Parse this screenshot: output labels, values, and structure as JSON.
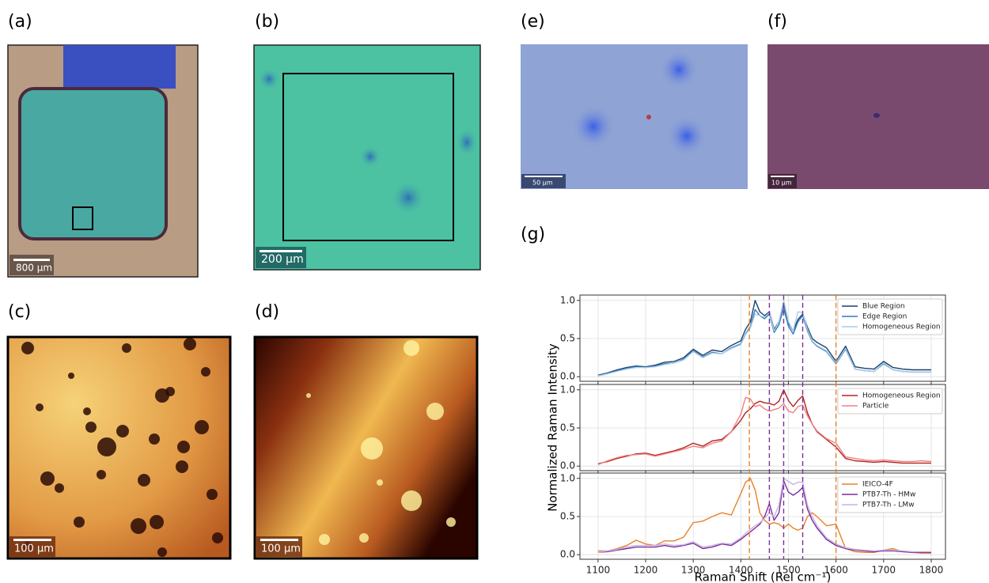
{
  "panel_labels": [
    "(a)",
    "(b)",
    "(c)",
    "(d)",
    "(e)",
    "(f)",
    "(g)"
  ],
  "scale_bars": [
    "800 µm",
    "200 µm",
    "100 µm",
    "100 µm",
    "50 µm",
    "10 µm"
  ],
  "reference_lines": [
    {
      "x": 1418,
      "color": "#e8812a"
    },
    {
      "x": 1460,
      "color": "#7b2d9e"
    },
    {
      "x": 1490,
      "color": "#7b2d9e"
    },
    {
      "x": 1530,
      "color": "#7b2d9e"
    },
    {
      "x": 1600,
      "color": "#e8812a"
    }
  ],
  "chart_data": [
    {
      "type": "line",
      "xlim": [
        1062,
        1830
      ],
      "ylim": [
        -0.06,
        1.07
      ],
      "xticks": [
        1100,
        1200,
        1300,
        1400,
        1500,
        1600,
        1700,
        1800
      ],
      "yticks": [
        {
          "value": 0,
          "label": "0.0"
        },
        {
          "value": 0.5,
          "label": "0.5"
        },
        {
          "value": 1,
          "label": "1.0"
        }
      ],
      "grid": true,
      "x": [
        1100,
        1120,
        1140,
        1160,
        1180,
        1200,
        1220,
        1240,
        1260,
        1280,
        1300,
        1320,
        1340,
        1360,
        1380,
        1400,
        1410,
        1420,
        1430,
        1440,
        1450,
        1460,
        1470,
        1480,
        1490,
        1500,
        1510,
        1520,
        1530,
        1540,
        1550,
        1560,
        1580,
        1600,
        1620,
        1640,
        1660,
        1680,
        1700,
        1720,
        1740,
        1760,
        1780,
        1800
      ],
      "series": [
        {
          "name": "Blue Region",
          "color": "#1d3f6e",
          "values": [
            0.02,
            0.05,
            0.09,
            0.12,
            0.14,
            0.13,
            0.15,
            0.19,
            0.2,
            0.25,
            0.36,
            0.28,
            0.35,
            0.33,
            0.41,
            0.47,
            0.62,
            0.72,
            1.0,
            0.85,
            0.8,
            0.85,
            0.62,
            0.72,
            0.97,
            0.7,
            0.6,
            0.75,
            0.82,
            0.65,
            0.5,
            0.45,
            0.38,
            0.2,
            0.4,
            0.13,
            0.11,
            0.1,
            0.2,
            0.12,
            0.1,
            0.09,
            0.09,
            0.09
          ]
        },
        {
          "name": "Edge Region",
          "color": "#2e7bbf",
          "values": [
            0.01,
            0.04,
            0.08,
            0.11,
            0.13,
            0.12,
            0.14,
            0.17,
            0.18,
            0.23,
            0.34,
            0.26,
            0.32,
            0.3,
            0.38,
            0.43,
            0.56,
            0.66,
            0.88,
            0.8,
            0.76,
            0.82,
            0.58,
            0.68,
            0.9,
            0.66,
            0.56,
            0.72,
            0.8,
            0.6,
            0.46,
            0.4,
            0.33,
            0.17,
            0.36,
            0.1,
            0.08,
            0.07,
            0.17,
            0.09,
            0.07,
            0.06,
            0.06,
            0.06
          ]
        },
        {
          "name": "Homogeneous Region",
          "color": "#a9cce3",
          "values": [
            0.01,
            0.04,
            0.07,
            0.1,
            0.12,
            0.12,
            0.13,
            0.16,
            0.18,
            0.22,
            0.33,
            0.25,
            0.31,
            0.3,
            0.37,
            0.42,
            0.55,
            0.64,
            0.82,
            0.8,
            0.78,
            0.84,
            0.6,
            0.72,
            1.0,
            0.72,
            0.6,
            0.85,
            0.84,
            0.62,
            0.47,
            0.41,
            0.34,
            0.18,
            0.37,
            0.1,
            0.08,
            0.07,
            0.18,
            0.09,
            0.07,
            0.06,
            0.06,
            0.06
          ]
        }
      ]
    },
    {
      "type": "line",
      "ylabel": "Normalized Raman Intensity",
      "xlim": [
        1062,
        1830
      ],
      "ylim": [
        -0.06,
        1.07
      ],
      "xticks": [
        1100,
        1200,
        1300,
        1400,
        1500,
        1600,
        1700,
        1800
      ],
      "yticks": [
        {
          "value": 0,
          "label": "0.0"
        },
        {
          "value": 0.5,
          "label": "0.5"
        },
        {
          "value": 1,
          "label": "1.0"
        }
      ],
      "grid": true,
      "x": [
        1100,
        1120,
        1140,
        1160,
        1180,
        1200,
        1220,
        1240,
        1260,
        1280,
        1300,
        1320,
        1340,
        1360,
        1380,
        1400,
        1410,
        1420,
        1430,
        1440,
        1450,
        1460,
        1470,
        1480,
        1490,
        1500,
        1510,
        1520,
        1530,
        1540,
        1550,
        1560,
        1580,
        1600,
        1620,
        1640,
        1660,
        1680,
        1700,
        1720,
        1740,
        1760,
        1780,
        1800
      ],
      "series": [
        {
          "name": "Homogeneous Region",
          "color": "#b22222",
          "values": [
            0.03,
            0.06,
            0.1,
            0.13,
            0.16,
            0.17,
            0.14,
            0.17,
            0.2,
            0.24,
            0.3,
            0.26,
            0.33,
            0.35,
            0.45,
            0.6,
            0.7,
            0.75,
            0.82,
            0.85,
            0.83,
            0.82,
            0.8,
            0.85,
            1.0,
            0.86,
            0.78,
            0.86,
            0.92,
            0.7,
            0.55,
            0.45,
            0.35,
            0.25,
            0.1,
            0.07,
            0.06,
            0.05,
            0.06,
            0.05,
            0.04,
            0.04,
            0.04,
            0.04
          ]
        },
        {
          "name": "Particle",
          "color": "#f08080",
          "values": [
            0.02,
            0.07,
            0.11,
            0.14,
            0.15,
            0.16,
            0.13,
            0.16,
            0.19,
            0.22,
            0.26,
            0.24,
            0.3,
            0.33,
            0.45,
            0.68,
            0.9,
            0.88,
            0.78,
            0.8,
            0.75,
            0.72,
            0.74,
            0.76,
            0.82,
            0.72,
            0.7,
            0.78,
            0.8,
            0.66,
            0.55,
            0.46,
            0.36,
            0.3,
            0.12,
            0.1,
            0.08,
            0.07,
            0.08,
            0.07,
            0.06,
            0.06,
            0.07,
            0.06
          ]
        }
      ]
    },
    {
      "type": "line",
      "xlabel": "Raman Shift (Rel cm⁻¹)",
      "xlim": [
        1062,
        1830
      ],
      "ylim": [
        -0.06,
        1.07
      ],
      "xticks": [
        1100,
        1200,
        1300,
        1400,
        1500,
        1600,
        1700,
        1800
      ],
      "yticks": [
        {
          "value": 0,
          "label": "0.0"
        },
        {
          "value": 0.5,
          "label": "0.5"
        },
        {
          "value": 1,
          "label": "1.0"
        }
      ],
      "grid": true,
      "x": [
        1100,
        1120,
        1140,
        1160,
        1180,
        1200,
        1220,
        1240,
        1260,
        1280,
        1300,
        1320,
        1340,
        1360,
        1380,
        1400,
        1410,
        1420,
        1430,
        1440,
        1450,
        1460,
        1470,
        1480,
        1490,
        1500,
        1510,
        1520,
        1530,
        1540,
        1550,
        1560,
        1580,
        1600,
        1620,
        1640,
        1660,
        1680,
        1700,
        1720,
        1740,
        1760,
        1780,
        1800
      ],
      "series": [
        {
          "name": "IEICO-4F",
          "color": "#e8812a",
          "values": [
            0.05,
            0.05,
            0.08,
            0.12,
            0.19,
            0.14,
            0.12,
            0.18,
            0.18,
            0.23,
            0.42,
            0.44,
            0.5,
            0.55,
            0.52,
            0.8,
            0.95,
            1.0,
            0.85,
            0.55,
            0.45,
            0.4,
            0.42,
            0.4,
            0.35,
            0.4,
            0.35,
            0.32,
            0.35,
            0.5,
            0.55,
            0.5,
            0.38,
            0.4,
            0.08,
            0.04,
            0.03,
            0.03,
            0.06,
            0.08,
            0.04,
            0.03,
            0.02,
            0.02
          ]
        },
        {
          "name": "PTB7-Th - HMw",
          "color": "#7b2d9e",
          "values": [
            0.03,
            0.04,
            0.06,
            0.08,
            0.1,
            0.1,
            0.1,
            0.12,
            0.1,
            0.12,
            0.15,
            0.08,
            0.1,
            0.14,
            0.12,
            0.2,
            0.25,
            0.3,
            0.35,
            0.4,
            0.5,
            0.67,
            0.45,
            0.55,
            0.97,
            0.82,
            0.78,
            0.82,
            0.88,
            0.6,
            0.45,
            0.35,
            0.2,
            0.12,
            0.08,
            0.06,
            0.05,
            0.04,
            0.05,
            0.05,
            0.04,
            0.03,
            0.03,
            0.03
          ]
        },
        {
          "name": "PTB7-Th - LMw",
          "color": "#c9b3e0",
          "values": [
            0.03,
            0.05,
            0.07,
            0.1,
            0.12,
            0.12,
            0.12,
            0.14,
            0.12,
            0.13,
            0.17,
            0.1,
            0.12,
            0.15,
            0.14,
            0.22,
            0.28,
            0.33,
            0.38,
            0.42,
            0.48,
            0.55,
            0.5,
            0.65,
            1.0,
            0.96,
            0.92,
            0.95,
            0.95,
            0.65,
            0.5,
            0.38,
            0.22,
            0.14,
            0.09,
            0.07,
            0.06,
            0.05,
            0.06,
            0.06,
            0.05,
            0.04,
            0.04,
            0.04
          ]
        }
      ]
    }
  ]
}
